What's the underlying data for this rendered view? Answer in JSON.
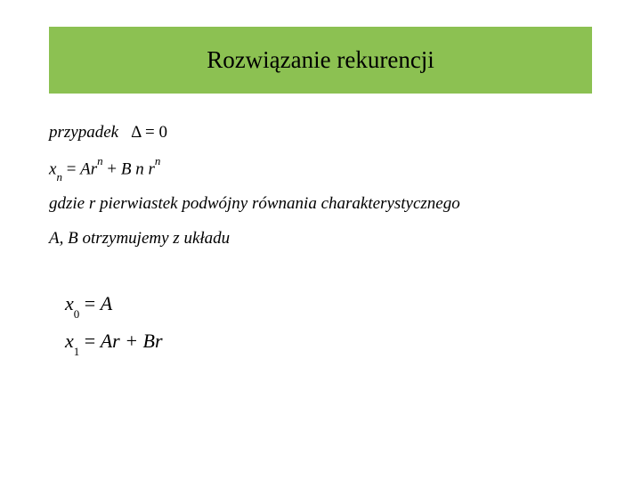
{
  "header": {
    "title": "Rozwiązanie rekurencji",
    "background_color": "#8cc152",
    "title_color": "#000000",
    "title_fontsize": 27
  },
  "content": {
    "case_label": "przypadek",
    "delta_eq": "Δ = 0",
    "formula_xn": "x",
    "formula_xn_sub": "n",
    "formula_eq": " = ",
    "formula_A": "Ar",
    "formula_n_sup": "n",
    "formula_plus": " + ",
    "formula_B": "B n r",
    "desc_where": "gdzie r  pierwiastek  podwójny  równania  charakterystycznego",
    "desc_AB": "A, B otrzymujemy z układu",
    "system": {
      "x0_lhs_var": "x",
      "x0_lhs_sub": "0",
      "x0_eq": " = ",
      "x0_rhs": "A",
      "x1_lhs_var": "x",
      "x1_lhs_sub": "1",
      "x1_eq": " = ",
      "x1_rhs": "Ar + Br"
    }
  },
  "colors": {
    "page_bg": "#ffffff",
    "text": "#000000"
  }
}
